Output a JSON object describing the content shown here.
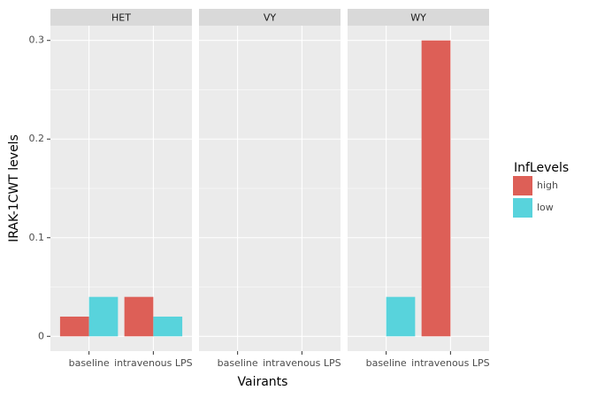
{
  "chart_data": {
    "type": "bar",
    "xlabel": "Vairants",
    "ylabel": "IRAK-1CWT levels",
    "legend_title": "InfLevels",
    "facets": [
      "HET",
      "VY",
      "WY"
    ],
    "categories": [
      "baseline",
      "intravenous LPS"
    ],
    "series": [
      {
        "name": "high",
        "color": "#dd5f57",
        "values": [
          [
            0.02,
            0.04
          ],
          [
            0,
            0
          ],
          [
            null,
            0.3
          ]
        ]
      },
      {
        "name": "low",
        "color": "#58d3dc",
        "values": [
          [
            0.04,
            0.02
          ],
          [
            0,
            0
          ],
          [
            0.04,
            null
          ]
        ]
      }
    ],
    "ylim": [
      -0.015,
      0.315
    ],
    "yticks": [
      0,
      0.1,
      0.2,
      0.3
    ],
    "grid": true
  }
}
